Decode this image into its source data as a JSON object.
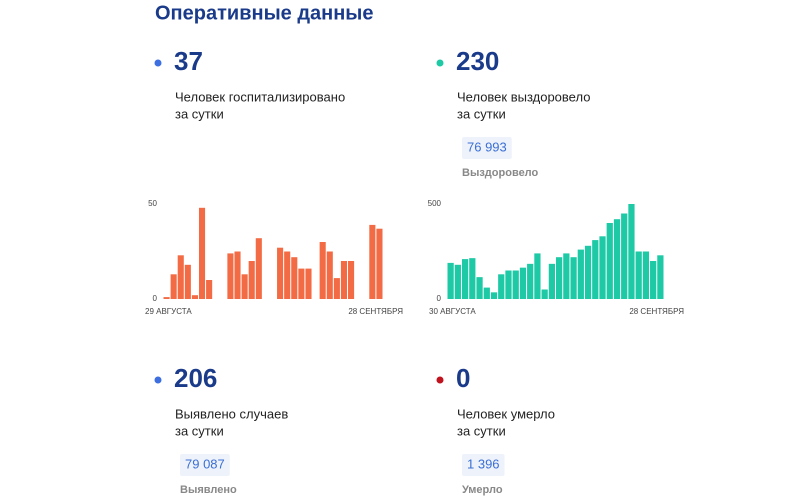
{
  "title": "Оперативные данные",
  "stats": [
    {
      "value": 37,
      "color": "#3d6fe0",
      "lines": [
        "Человек госпитализировано",
        "за сутки"
      ]
    },
    {
      "value": 230,
      "color": "#1ec9a6",
      "lines": [
        "Человек выздоровело",
        "за сутки"
      ],
      "total": "76 993",
      "total_label": "Выздоровело"
    },
    {
      "value": 206,
      "color": "#3d6fe0",
      "lines": [
        "Выявлено случаев",
        "за сутки"
      ],
      "total": "79 087",
      "total_label": "Выявлено"
    },
    {
      "value": 0,
      "color": "#c1121f",
      "lines": [
        "Человек умерло",
        "за сутки"
      ],
      "total": "1 396",
      "total_label": "Умерло"
    }
  ],
  "chart_data": [
    {
      "type": "bar",
      "color": "#f26b44",
      "categories": [
        "29 АВГУСТА",
        null,
        null,
        null,
        null,
        null,
        null,
        null,
        null,
        null,
        null,
        null,
        null,
        null,
        null,
        null,
        null,
        null,
        null,
        null,
        null,
        null,
        null,
        null,
        null,
        null,
        null,
        null,
        null,
        null,
        "28 СЕНТЯБРЯ"
      ],
      "values": [
        1,
        13,
        23,
        18,
        2,
        48,
        10,
        0,
        0,
        24,
        25,
        13,
        20,
        32,
        0,
        0,
        27,
        25,
        22,
        16,
        16,
        0,
        30,
        25,
        11,
        20,
        20,
        0,
        0,
        39,
        37
      ],
      "ylim": [
        0,
        50
      ],
      "yticks": [
        0,
        50
      ]
    },
    {
      "type": "bar",
      "color": "#1ec9a6",
      "categories": [
        "30 АВГУСТА",
        null,
        null,
        null,
        null,
        null,
        null,
        null,
        null,
        null,
        null,
        null,
        null,
        null,
        null,
        null,
        null,
        null,
        null,
        null,
        null,
        null,
        null,
        null,
        null,
        null,
        null,
        null,
        null,
        "28 СЕНТЯБРЯ"
      ],
      "values": [
        190,
        180,
        210,
        215,
        115,
        60,
        35,
        130,
        150,
        150,
        165,
        185,
        240,
        50,
        185,
        220,
        240,
        220,
        260,
        280,
        310,
        330,
        400,
        420,
        450,
        500,
        250,
        250,
        200,
        230
      ],
      "ylim": [
        0,
        500
      ],
      "yticks": [
        0,
        500
      ]
    }
  ]
}
